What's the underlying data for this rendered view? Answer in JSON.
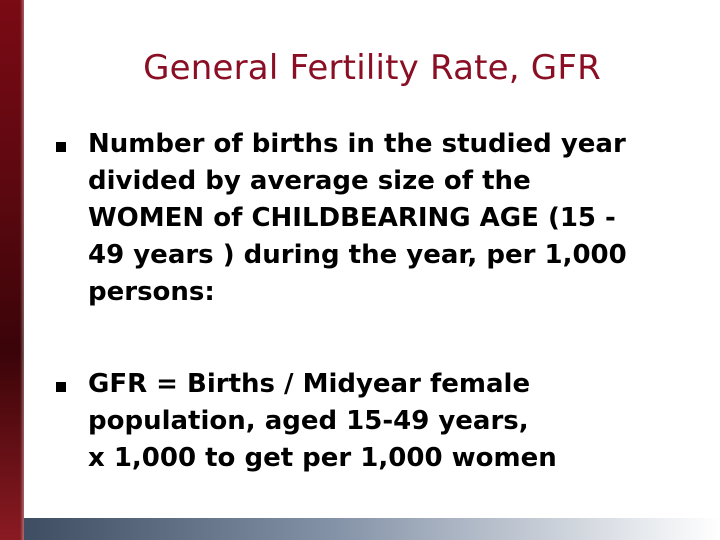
{
  "slide": {
    "title": "General Fertility Rate, GFR",
    "bullets": [
      {
        "text": "Number of births in the studied year\ndivided by average size of the\nWOMEN of CHILDBEARING AGE (15 -\n49 years ) during the year, per 1,000\npersons:"
      },
      {
        "text": "GFR = Births / Midyear female\npopulation, aged 15-49 years,\nx 1,000  to get per 1,000 women"
      }
    ]
  },
  "colors": {
    "title": "#8a0f24",
    "left_bar": "#5c0810",
    "bottom_bar_start": "#3f4d63"
  }
}
